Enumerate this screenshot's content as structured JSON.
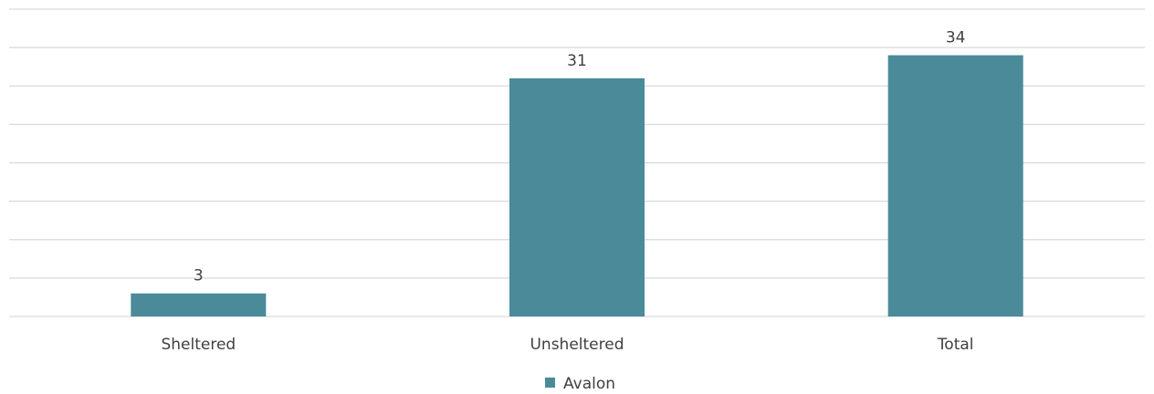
{
  "chart_data": {
    "type": "bar",
    "categories": [
      "Sheltered",
      "Unsheltered",
      "Total"
    ],
    "series": [
      {
        "name": "Avalon",
        "values": [
          3,
          31,
          34
        ]
      }
    ],
    "ylim": [
      0,
      40
    ],
    "grid": true,
    "gridline_count": 9,
    "axis_tick_labels_shown": false,
    "legend_position": "bottom",
    "bar_color": "#4a8a99",
    "data_labels_shown": true
  }
}
